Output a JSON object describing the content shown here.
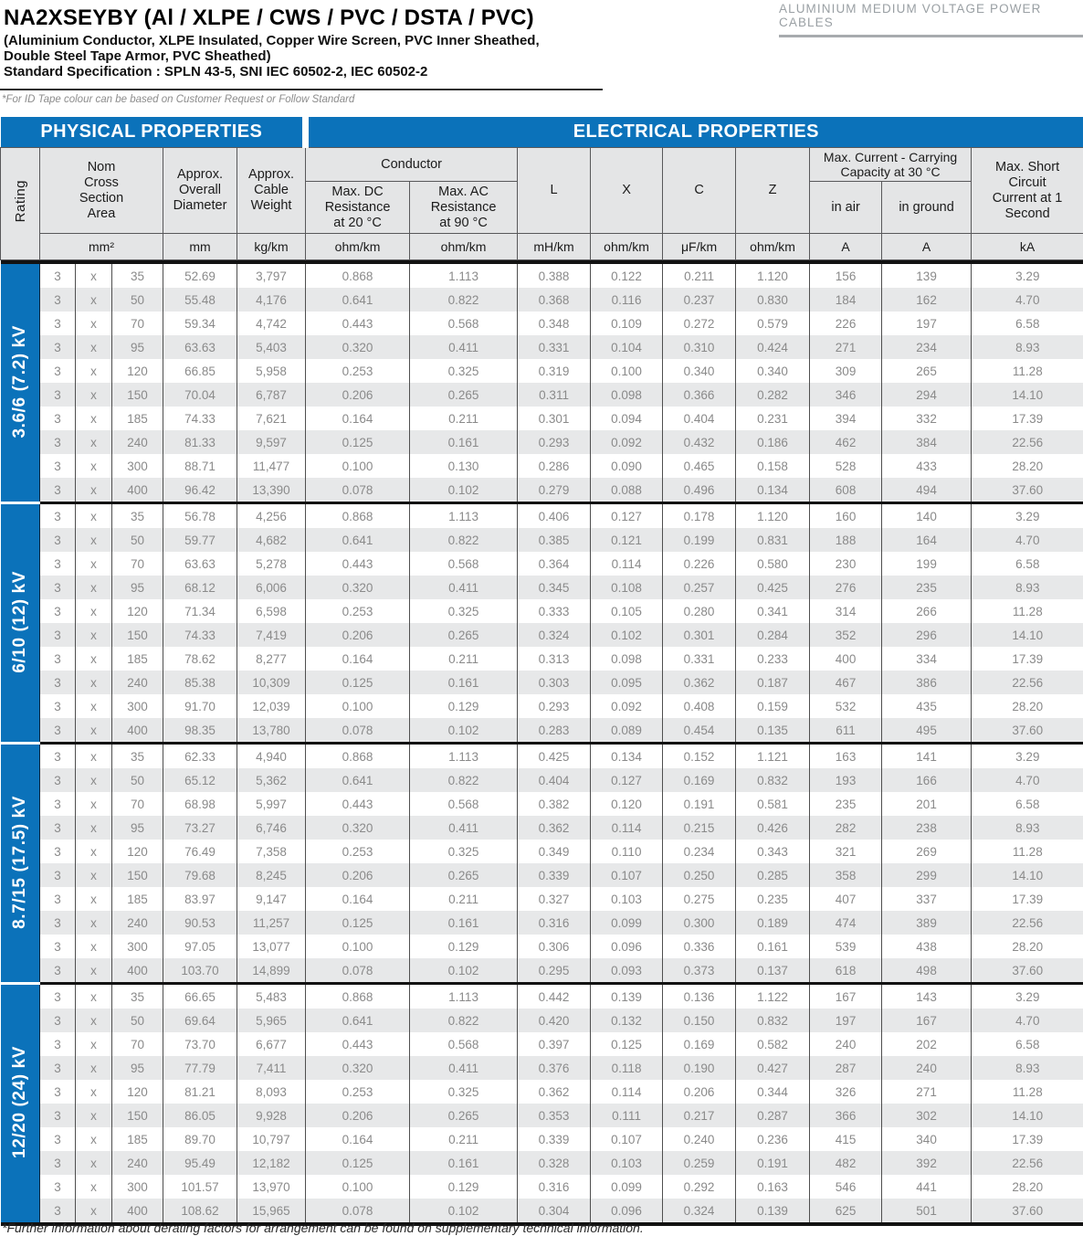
{
  "page": {
    "title": "NA2XSEYBY (Al / XLPE / CWS / PVC / DSTA / PVC)",
    "subtitle_line1": "(Aluminium Conductor, XLPE Insulated, Copper Wire Screen, PVC Inner Sheathed,",
    "subtitle_line2": "Double Steel Tape Armor, PVC Sheathed)",
    "subtitle_line3": "Standard Specification : SPLN 43-5, SNI IEC 60502-2, IEC 60502-2",
    "category_label": "ALUMINIUM MEDIUM VOLTAGE POWER CABLES",
    "id_tape_note": "*For ID Tape colour can be based on Customer Request or Follow Standard",
    "footer_note": "*Further information about derating factors for arrangement can be found on supplementary technical information."
  },
  "colors": {
    "accent_blue": "#0b72ba",
    "header_gray": "#e4e5e6",
    "stripe_gray": "#e7e8e9"
  },
  "table": {
    "band": {
      "physical": "PHYSICAL PROPERTIES",
      "electrical": "ELECTRICAL PROPERTIES"
    },
    "headers": {
      "rating": "Rating",
      "nom_cross": "Nom\nCross\nSection\nArea",
      "diameter": "Approx.\nOverall\nDiameter",
      "weight": "Approx.\nCable\nWeight",
      "conductor": "Conductor",
      "dc": "Max. DC\nResistance\nat 20 °C",
      "ac": "Max. AC\nResistance\nat 90 °C",
      "l": "L",
      "x": "X",
      "c": "C",
      "z": "Z",
      "max_current": "Max. Current - Carrying\nCapacity at 30 °C",
      "in_air": "in air",
      "in_ground": "in ground",
      "short_circuit": "Max. Short\nCircuit\nCurrent at 1\nSecond"
    },
    "units": [
      "mm²",
      "mm",
      "kg/km",
      "ohm/km",
      "ohm/km",
      "mH/km",
      "ohm/km",
      "μF/km",
      "ohm/km",
      "A",
      "A",
      "kA"
    ],
    "sections": [
      {
        "rating": "3.6/6 (7.2) kV",
        "rows": [
          [
            "3",
            "x",
            "35",
            "52.69",
            "3,797",
            "0.868",
            "1.113",
            "0.388",
            "0.122",
            "0.211",
            "1.120",
            "156",
            "139",
            "3.29"
          ],
          [
            "3",
            "x",
            "50",
            "55.48",
            "4,176",
            "0.641",
            "0.822",
            "0.368",
            "0.116",
            "0.237",
            "0.830",
            "184",
            "162",
            "4.70"
          ],
          [
            "3",
            "x",
            "70",
            "59.34",
            "4,742",
            "0.443",
            "0.568",
            "0.348",
            "0.109",
            "0.272",
            "0.579",
            "226",
            "197",
            "6.58"
          ],
          [
            "3",
            "x",
            "95",
            "63.63",
            "5,403",
            "0.320",
            "0.411",
            "0.331",
            "0.104",
            "0.310",
            "0.424",
            "271",
            "234",
            "8.93"
          ],
          [
            "3",
            "x",
            "120",
            "66.85",
            "5,958",
            "0.253",
            "0.325",
            "0.319",
            "0.100",
            "0.340",
            "0.340",
            "309",
            "265",
            "11.28"
          ],
          [
            "3",
            "x",
            "150",
            "70.04",
            "6,787",
            "0.206",
            "0.265",
            "0.311",
            "0.098",
            "0.366",
            "0.282",
            "346",
            "294",
            "14.10"
          ],
          [
            "3",
            "x",
            "185",
            "74.33",
            "7,621",
            "0.164",
            "0.211",
            "0.301",
            "0.094",
            "0.404",
            "0.231",
            "394",
            "332",
            "17.39"
          ],
          [
            "3",
            "x",
            "240",
            "81.33",
            "9,597",
            "0.125",
            "0.161",
            "0.293",
            "0.092",
            "0.432",
            "0.186",
            "462",
            "384",
            "22.56"
          ],
          [
            "3",
            "x",
            "300",
            "88.71",
            "11,477",
            "0.100",
            "0.130",
            "0.286",
            "0.090",
            "0.465",
            "0.158",
            "528",
            "433",
            "28.20"
          ],
          [
            "3",
            "x",
            "400",
            "96.42",
            "13,390",
            "0.078",
            "0.102",
            "0.279",
            "0.088",
            "0.496",
            "0.134",
            "608",
            "494",
            "37.60"
          ]
        ]
      },
      {
        "rating": "6/10 (12) kV",
        "rows": [
          [
            "3",
            "x",
            "35",
            "56.78",
            "4,256",
            "0.868",
            "1.113",
            "0.406",
            "0.127",
            "0.178",
            "1.120",
            "160",
            "140",
            "3.29"
          ],
          [
            "3",
            "x",
            "50",
            "59.77",
            "4,682",
            "0.641",
            "0.822",
            "0.385",
            "0.121",
            "0.199",
            "0.831",
            "188",
            "164",
            "4.70"
          ],
          [
            "3",
            "x",
            "70",
            "63.63",
            "5,278",
            "0.443",
            "0.568",
            "0.364",
            "0.114",
            "0.226",
            "0.580",
            "230",
            "199",
            "6.58"
          ],
          [
            "3",
            "x",
            "95",
            "68.12",
            "6,006",
            "0.320",
            "0.411",
            "0.345",
            "0.108",
            "0.257",
            "0.425",
            "276",
            "235",
            "8.93"
          ],
          [
            "3",
            "x",
            "120",
            "71.34",
            "6,598",
            "0.253",
            "0.325",
            "0.333",
            "0.105",
            "0.280",
            "0.341",
            "314",
            "266",
            "11.28"
          ],
          [
            "3",
            "x",
            "150",
            "74.33",
            "7,419",
            "0.206",
            "0.265",
            "0.324",
            "0.102",
            "0.301",
            "0.284",
            "352",
            "296",
            "14.10"
          ],
          [
            "3",
            "x",
            "185",
            "78.62",
            "8,277",
            "0.164",
            "0.211",
            "0.313",
            "0.098",
            "0.331",
            "0.233",
            "400",
            "334",
            "17.39"
          ],
          [
            "3",
            "x",
            "240",
            "85.38",
            "10,309",
            "0.125",
            "0.161",
            "0.303",
            "0.095",
            "0.362",
            "0.187",
            "467",
            "386",
            "22.56"
          ],
          [
            "3",
            "x",
            "300",
            "91.70",
            "12,039",
            "0.100",
            "0.129",
            "0.293",
            "0.092",
            "0.408",
            "0.159",
            "532",
            "435",
            "28.20"
          ],
          [
            "3",
            "x",
            "400",
            "98.35",
            "13,780",
            "0.078",
            "0.102",
            "0.283",
            "0.089",
            "0.454",
            "0.135",
            "611",
            "495",
            "37.60"
          ]
        ]
      },
      {
        "rating": "8.7/15 (17.5) kV",
        "rows": [
          [
            "3",
            "x",
            "35",
            "62.33",
            "4,940",
            "0.868",
            "1.113",
            "0.425",
            "0.134",
            "0.152",
            "1.121",
            "163",
            "141",
            "3.29"
          ],
          [
            "3",
            "x",
            "50",
            "65.12",
            "5,362",
            "0.641",
            "0.822",
            "0.404",
            "0.127",
            "0.169",
            "0.832",
            "193",
            "166",
            "4.70"
          ],
          [
            "3",
            "x",
            "70",
            "68.98",
            "5,997",
            "0.443",
            "0.568",
            "0.382",
            "0.120",
            "0.191",
            "0.581",
            "235",
            "201",
            "6.58"
          ],
          [
            "3",
            "x",
            "95",
            "73.27",
            "6,746",
            "0.320",
            "0.411",
            "0.362",
            "0.114",
            "0.215",
            "0.426",
            "282",
            "238",
            "8.93"
          ],
          [
            "3",
            "x",
            "120",
            "76.49",
            "7,358",
            "0.253",
            "0.325",
            "0.349",
            "0.110",
            "0.234",
            "0.343",
            "321",
            "269",
            "11.28"
          ],
          [
            "3",
            "x",
            "150",
            "79.68",
            "8,245",
            "0.206",
            "0.265",
            "0.339",
            "0.107",
            "0.250",
            "0.285",
            "358",
            "299",
            "14.10"
          ],
          [
            "3",
            "x",
            "185",
            "83.97",
            "9,147",
            "0.164",
            "0.211",
            "0.327",
            "0.103",
            "0.275",
            "0.235",
            "407",
            "337",
            "17.39"
          ],
          [
            "3",
            "x",
            "240",
            "90.53",
            "11,257",
            "0.125",
            "0.161",
            "0.316",
            "0.099",
            "0.300",
            "0.189",
            "474",
            "389",
            "22.56"
          ],
          [
            "3",
            "x",
            "300",
            "97.05",
            "13,077",
            "0.100",
            "0.129",
            "0.306",
            "0.096",
            "0.336",
            "0.161",
            "539",
            "438",
            "28.20"
          ],
          [
            "3",
            "x",
            "400",
            "103.70",
            "14,899",
            "0.078",
            "0.102",
            "0.295",
            "0.093",
            "0.373",
            "0.137",
            "618",
            "498",
            "37.60"
          ]
        ]
      },
      {
        "rating": "12/20 (24) kV",
        "rows": [
          [
            "3",
            "x",
            "35",
            "66.65",
            "5,483",
            "0.868",
            "1.113",
            "0.442",
            "0.139",
            "0.136",
            "1.122",
            "167",
            "143",
            "3.29"
          ],
          [
            "3",
            "x",
            "50",
            "69.64",
            "5,965",
            "0.641",
            "0.822",
            "0.420",
            "0.132",
            "0.150",
            "0.832",
            "197",
            "167",
            "4.70"
          ],
          [
            "3",
            "x",
            "70",
            "73.70",
            "6,677",
            "0.443",
            "0.568",
            "0.397",
            "0.125",
            "0.169",
            "0.582",
            "240",
            "202",
            "6.58"
          ],
          [
            "3",
            "x",
            "95",
            "77.79",
            "7,411",
            "0.320",
            "0.411",
            "0.376",
            "0.118",
            "0.190",
            "0.427",
            "287",
            "240",
            "8.93"
          ],
          [
            "3",
            "x",
            "120",
            "81.21",
            "8,093",
            "0.253",
            "0.325",
            "0.362",
            "0.114",
            "0.206",
            "0.344",
            "326",
            "271",
            "11.28"
          ],
          [
            "3",
            "x",
            "150",
            "86.05",
            "9,928",
            "0.206",
            "0.265",
            "0.353",
            "0.111",
            "0.217",
            "0.287",
            "366",
            "302",
            "14.10"
          ],
          [
            "3",
            "x",
            "185",
            "89.70",
            "10,797",
            "0.164",
            "0.211",
            "0.339",
            "0.107",
            "0.240",
            "0.236",
            "415",
            "340",
            "17.39"
          ],
          [
            "3",
            "x",
            "240",
            "95.49",
            "12,182",
            "0.125",
            "0.161",
            "0.328",
            "0.103",
            "0.259",
            "0.191",
            "482",
            "392",
            "22.56"
          ],
          [
            "3",
            "x",
            "300",
            "101.57",
            "13,970",
            "0.100",
            "0.129",
            "0.316",
            "0.099",
            "0.292",
            "0.163",
            "546",
            "441",
            "28.20"
          ],
          [
            "3",
            "x",
            "400",
            "108.62",
            "15,965",
            "0.078",
            "0.102",
            "0.304",
            "0.096",
            "0.324",
            "0.139",
            "625",
            "501",
            "37.60"
          ]
        ]
      }
    ]
  }
}
